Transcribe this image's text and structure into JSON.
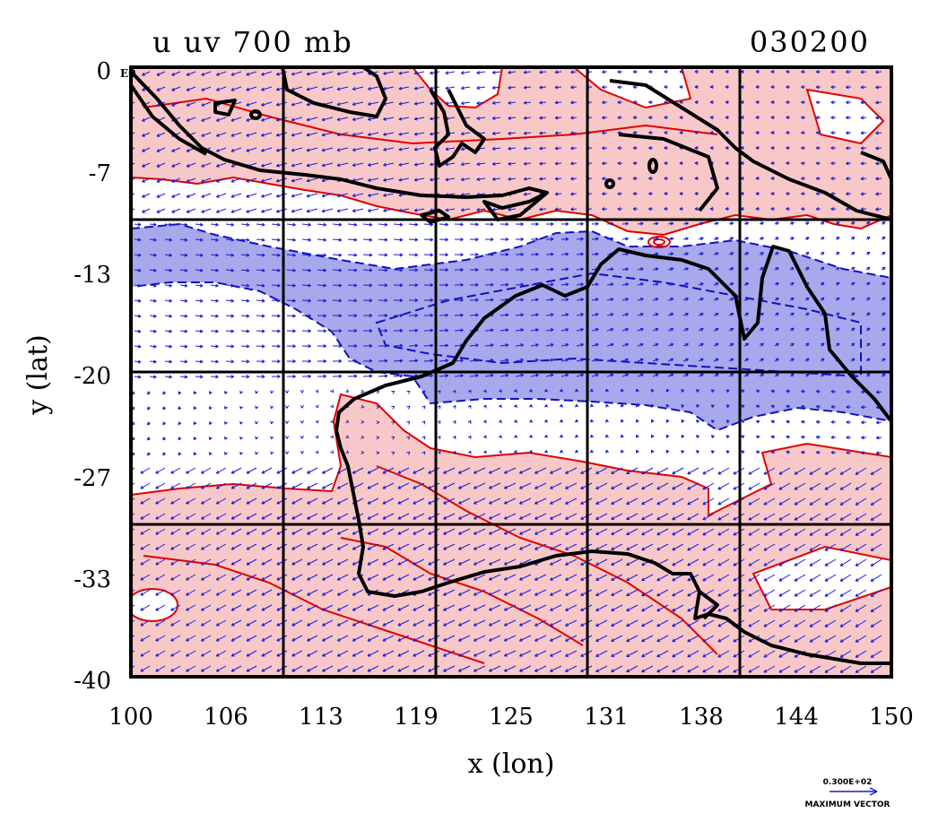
{
  "title": "u uv 700 mb",
  "timestamp": "030200",
  "corner_label": "E0",
  "axes": {
    "xlabel": "x (lon)",
    "ylabel": "y (lat)",
    "xticks": [
      "100",
      "106",
      "113",
      "119",
      "125",
      "131",
      "138",
      "144",
      "150"
    ],
    "yticks": [
      "0",
      "-7",
      "-13",
      "-20",
      "-27",
      "-33",
      "-40"
    ]
  },
  "vector_key": {
    "value": "0.300E+02",
    "label": "MAXIMUM VECTOR"
  },
  "colors": {
    "positive_fill": "#f8c8c8",
    "positive_contour": "#e00000",
    "negative_fill": "#a8a8ec",
    "negative_contour": "#1010c0",
    "vectors": "#1a1ad8",
    "coast": "#000000"
  }
}
